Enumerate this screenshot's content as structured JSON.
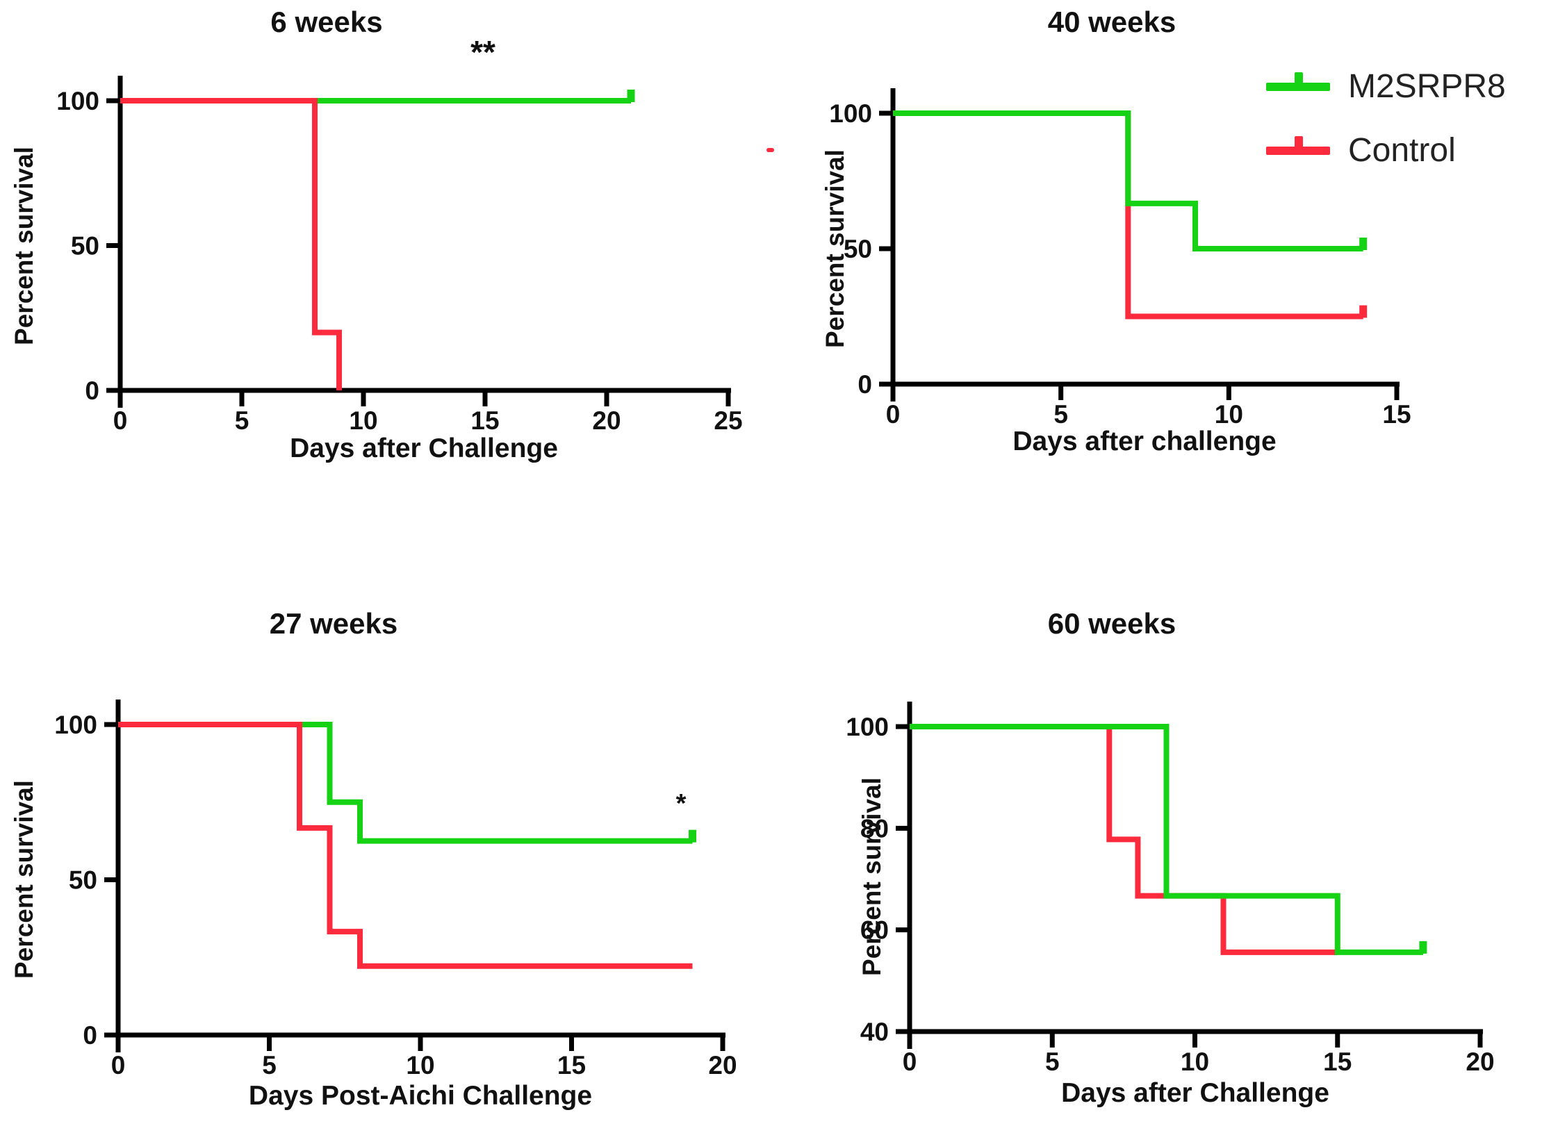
{
  "figure": {
    "colors": {
      "green": "#15d215",
      "red": "#fb2a3c",
      "axis": "#000000",
      "text": "#111111"
    },
    "legend": {
      "items": [
        {
          "label": "M2SRPR8",
          "color": "green"
        },
        {
          "label": "Control",
          "color": "red"
        }
      ]
    },
    "panels": [
      {
        "title": "6 weeks",
        "xlabel": "Days after Challenge",
        "ylabel": "Percent survival",
        "annotation": "**"
      },
      {
        "title": "40 weeks",
        "xlabel": "Days after challenge",
        "ylabel": "Percent survival",
        "annotation": ""
      },
      {
        "title": "27 weeks",
        "xlabel": "Days Post-Aichi Challenge",
        "ylabel": "Percent survival",
        "annotation": "*"
      },
      {
        "title": "60 weeks",
        "xlabel": "Days after Challenge",
        "ylabel": "Percent survival",
        "annotation": ""
      }
    ]
  },
  "chart_data": [
    {
      "type": "line",
      "subtype": "kaplan-meier-step",
      "title": "6 weeks",
      "xlabel": "Days after Challenge",
      "ylabel": "Percent survival",
      "xlim": [
        0,
        25
      ],
      "xticks": [
        0,
        5,
        10,
        15,
        20,
        25
      ],
      "ylim": [
        0,
        100
      ],
      "yticks": [
        0,
        50,
        100
      ],
      "grid": false,
      "annotation": {
        "text": "**",
        "x": 15,
        "y": 112
      },
      "series": [
        {
          "name": "M2SRPR8",
          "color": "green",
          "censored_at_end": true,
          "points": [
            [
              0,
              100
            ],
            [
              21,
              100
            ]
          ]
        },
        {
          "name": "Control",
          "color": "red",
          "censored_at_end": false,
          "points": [
            [
              0,
              100
            ],
            [
              8,
              100
            ],
            [
              8,
              20
            ],
            [
              9,
              20
            ],
            [
              9,
              0
            ]
          ]
        }
      ]
    },
    {
      "type": "line",
      "subtype": "kaplan-meier-step",
      "title": "40 weeks",
      "xlabel": "Days after challenge",
      "ylabel": "Percent survival",
      "xlim": [
        0,
        15
      ],
      "xticks": [
        0,
        5,
        10,
        15
      ],
      "ylim": [
        0,
        100
      ],
      "yticks": [
        0,
        50,
        100
      ],
      "grid": false,
      "legend_position": "top-right",
      "annotation": {
        "text": "",
        "x": 0,
        "y": 0
      },
      "series": [
        {
          "name": "Control",
          "color": "red",
          "censored_at_end": true,
          "points": [
            [
              0,
              100
            ],
            [
              7,
              100
            ],
            [
              7,
              25
            ],
            [
              14,
              25
            ]
          ]
        },
        {
          "name": "M2SRPR8",
          "color": "green",
          "censored_at_end": true,
          "points": [
            [
              0,
              100
            ],
            [
              7,
              100
            ],
            [
              7,
              66.7
            ],
            [
              9,
              66.7
            ],
            [
              9,
              50
            ],
            [
              14,
              50
            ]
          ]
        }
      ]
    },
    {
      "type": "line",
      "subtype": "kaplan-meier-step",
      "title": "27 weeks",
      "xlabel": "Days Post-Aichi Challenge",
      "ylabel": "Percent survival",
      "xlim": [
        0,
        20
      ],
      "xticks": [
        0,
        5,
        10,
        15,
        20
      ],
      "ylim": [
        0,
        100
      ],
      "yticks": [
        0,
        50,
        100
      ],
      "grid": false,
      "annotation": {
        "text": "*",
        "x": 18.6,
        "y": 72
      },
      "series": [
        {
          "name": "M2SRPR8",
          "color": "green",
          "censored_at_end": true,
          "points": [
            [
              0,
              100
            ],
            [
              7,
              100
            ],
            [
              7,
              75
            ],
            [
              8,
              75
            ],
            [
              8,
              62.5
            ],
            [
              19,
              62.5
            ]
          ]
        },
        {
          "name": "Control",
          "color": "red",
          "censored_at_end": false,
          "points": [
            [
              0,
              100
            ],
            [
              6,
              100
            ],
            [
              6,
              66.7
            ],
            [
              7,
              66.7
            ],
            [
              7,
              33.3
            ],
            [
              8,
              33.3
            ],
            [
              8,
              22.2
            ],
            [
              19,
              22.2
            ]
          ]
        }
      ]
    },
    {
      "type": "line",
      "subtype": "kaplan-meier-step",
      "title": "60 weeks",
      "xlabel": "Days after Challenge",
      "ylabel": "Percent survival",
      "xlim": [
        0,
        20
      ],
      "xticks": [
        0,
        5,
        10,
        15,
        20
      ],
      "ylim": [
        40,
        100
      ],
      "yticks": [
        40,
        60,
        80,
        100
      ],
      "grid": false,
      "annotation": {
        "text": "",
        "x": 0,
        "y": 0
      },
      "series": [
        {
          "name": "Control",
          "color": "red",
          "censored_at_end": false,
          "points": [
            [
              0,
              100
            ],
            [
              7,
              100
            ],
            [
              7,
              77.8
            ],
            [
              8,
              77.8
            ],
            [
              8,
              66.7
            ],
            [
              11,
              66.7
            ],
            [
              11,
              55.6
            ],
            [
              15,
              55.6
            ]
          ]
        },
        {
          "name": "M2SRPR8",
          "color": "green",
          "censored_at_end": true,
          "points": [
            [
              0,
              100
            ],
            [
              9,
              100
            ],
            [
              9,
              66.7
            ],
            [
              15,
              66.7
            ],
            [
              15,
              55.6
            ],
            [
              18,
              55.6
            ]
          ]
        }
      ]
    }
  ]
}
